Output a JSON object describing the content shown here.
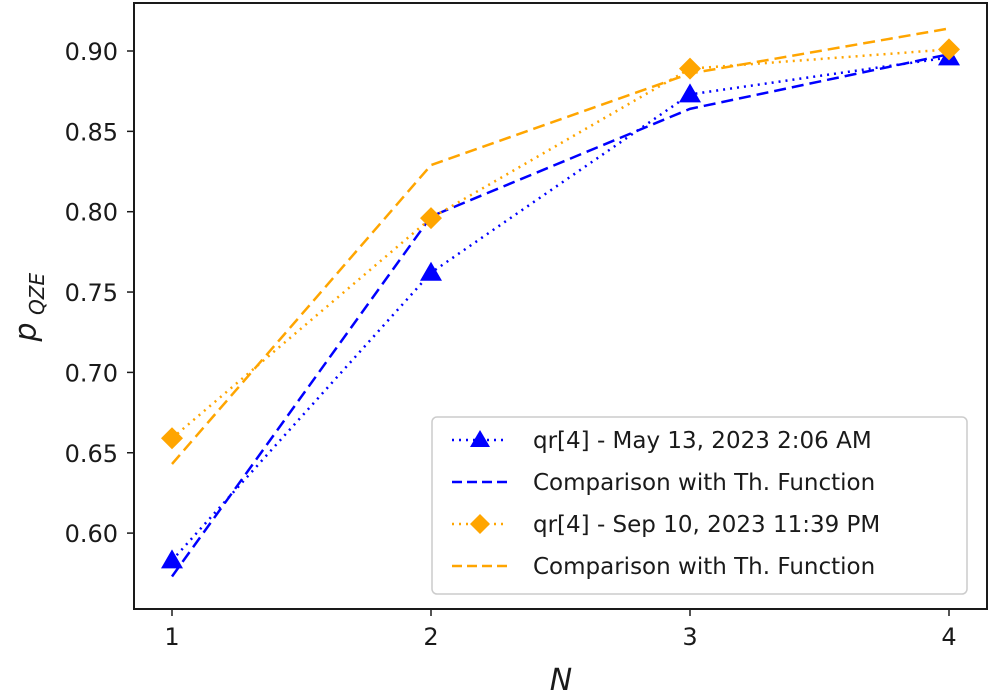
{
  "chart_data": {
    "type": "line",
    "title": "",
    "xlabel": "N",
    "ylabel": "p_QZE",
    "ylabel_main": "p",
    "ylabel_sub": "QZE",
    "x": [
      1,
      2,
      3,
      4
    ],
    "xticks": [
      "1",
      "2",
      "3",
      "4"
    ],
    "yticks": [
      "0.60",
      "0.65",
      "0.70",
      "0.75",
      "0.80",
      "0.85",
      "0.90"
    ],
    "ylim": [
      0.557,
      0.927
    ],
    "xlim": [
      0.85,
      4.15
    ],
    "grid": false,
    "legend_position": "lower right",
    "series": [
      {
        "name": "qr[4] - May 13, 2023 2:06 AM",
        "color": "#0000ff",
        "linestyle": "dotted",
        "marker": "triangle",
        "values": [
          0.583,
          0.762,
          0.873,
          0.896
        ]
      },
      {
        "name": "Comparison with Th. Function",
        "color": "#0000ff",
        "linestyle": "dashed",
        "marker": "none",
        "values": [
          0.573,
          0.797,
          0.864,
          0.898
        ]
      },
      {
        "name": "qr[4] - Sep 10, 2023 11:39 PM",
        "color": "#ffa500",
        "linestyle": "dotted",
        "marker": "diamond",
        "values": [
          0.659,
          0.796,
          0.889,
          0.901
        ]
      },
      {
        "name": "Comparison with Th. Function",
        "color": "#ffa500",
        "linestyle": "dashed",
        "marker": "none",
        "values": [
          0.643,
          0.829,
          0.886,
          0.914
        ]
      }
    ]
  },
  "legend": {
    "items": [
      {
        "label": "qr[4] - May 13, 2023 2:06 AM"
      },
      {
        "label": "Comparison with Th. Function"
      },
      {
        "label": "qr[4] - Sep 10, 2023 11:39 PM"
      },
      {
        "label": "Comparison with Th. Function"
      }
    ]
  }
}
